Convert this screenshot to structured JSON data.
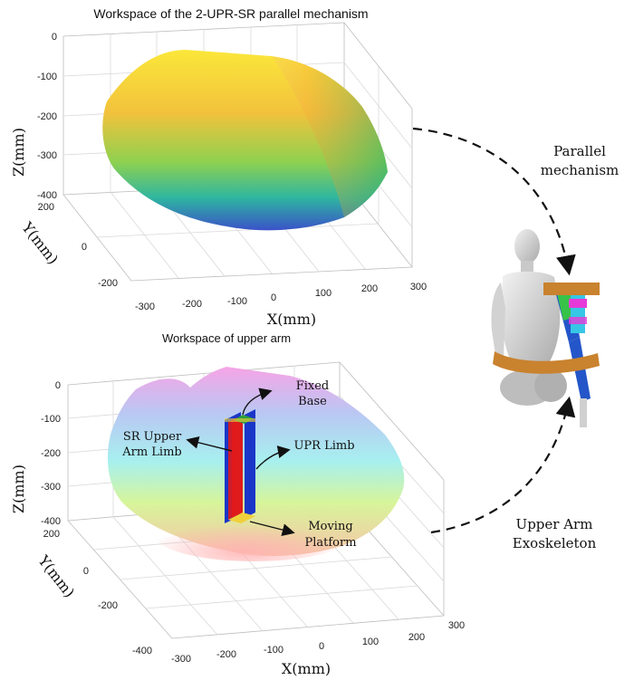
{
  "top_plot": {
    "title": "Workspace of the 2-UPR-SR parallel mechanism",
    "z_label": "Z(mm)",
    "y_label": "Y(mm)",
    "x_label": "X(mm)",
    "z_ticks": [
      "0",
      "-100",
      "-200",
      "-300",
      "-400"
    ],
    "y_ticks": [
      "200",
      "0",
      "-200"
    ],
    "x_ticks": [
      "-300",
      "-200",
      "-100",
      "0",
      "100",
      "200",
      "300"
    ]
  },
  "bottom_plot": {
    "title": "Workspace of upper arm",
    "z_label": "Z(mm)",
    "y_label": "Y(mm)",
    "x_label": "X(mm)",
    "z_ticks": [
      "0",
      "-100",
      "-200",
      "-300",
      "-400"
    ],
    "y_ticks": [
      "200",
      "0",
      "-200",
      "-400"
    ],
    "x_ticks": [
      "-300",
      "-200",
      "-100",
      "0",
      "100",
      "200",
      "300"
    ],
    "annotations": {
      "fixed_base": [
        "Fixed",
        "Base"
      ],
      "sr_limb": [
        "SR Upper",
        "Arm Limb"
      ],
      "upr_limb": "UPR Limb",
      "moving_platform": [
        "Moving",
        "Platform"
      ]
    }
  },
  "side_labels": {
    "parallel": [
      "Parallel",
      "mechanism"
    ],
    "exoskeleton": [
      "Upper Arm",
      "Exoskeleton"
    ]
  },
  "colors": {
    "viridis_top": "#f6e13a",
    "viridis_mid": "#3fbf75",
    "viridis_bottom": "#3b6fd8",
    "pastel_pink": "#f4a6e6",
    "pastel_cyan": "#a6f2f0",
    "limb_red": "#e01b1b",
    "limb_blue": "#1a36c8",
    "band_orange": "#c9822e",
    "arm_blue": "#2456c9"
  }
}
